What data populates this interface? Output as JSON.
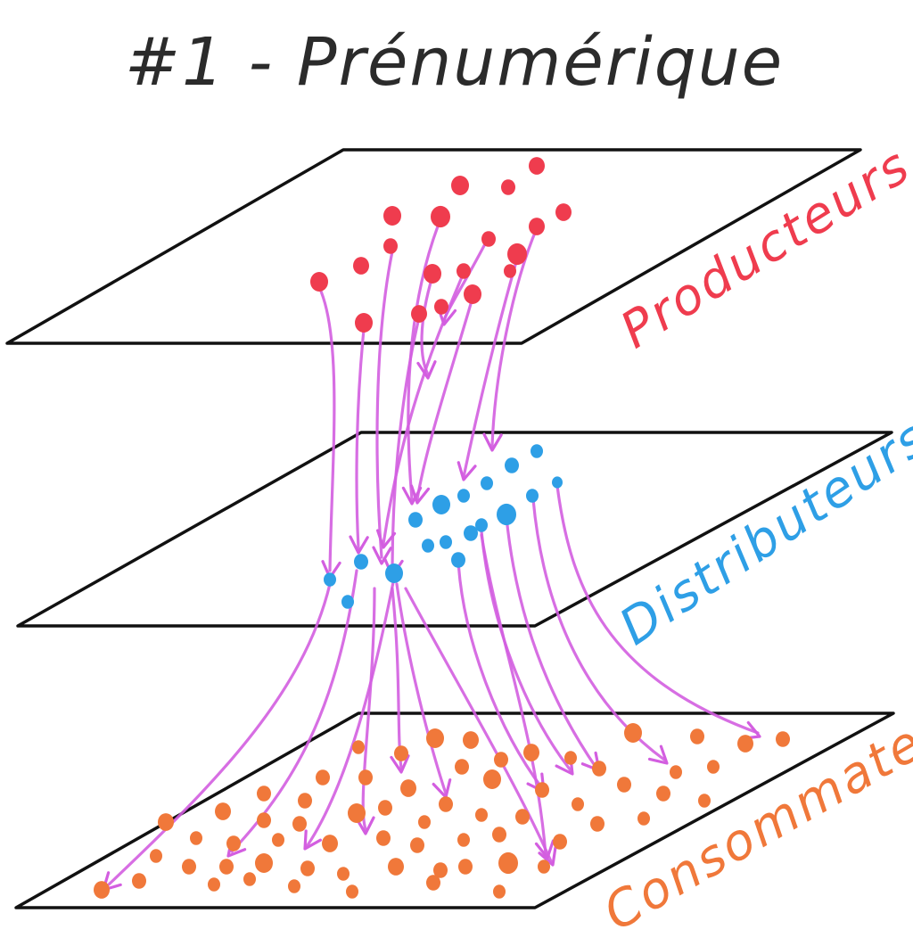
{
  "title": "#1 - Prénumérique",
  "colors": {
    "producers": "#ef3c4e",
    "distributors": "#2e9fe6",
    "consumers": "#f0783a",
    "flows": "#d35ee0",
    "planes": "#111111",
    "title": "#2b2b2b"
  },
  "layers": [
    {
      "id": "producteurs",
      "label": "Producteurs",
      "color": "#ef3c4e",
      "level": "top"
    },
    {
      "id": "distributeurs",
      "label": "Distributeurs",
      "color": "#2e9fe6",
      "level": "middle"
    },
    {
      "id": "consommateurs",
      "label": "Consommateurs",
      "color": "#f0783a",
      "level": "bottom"
    }
  ],
  "flow_direction": [
    "producteurs",
    "distributeurs",
    "consommateurs"
  ]
}
